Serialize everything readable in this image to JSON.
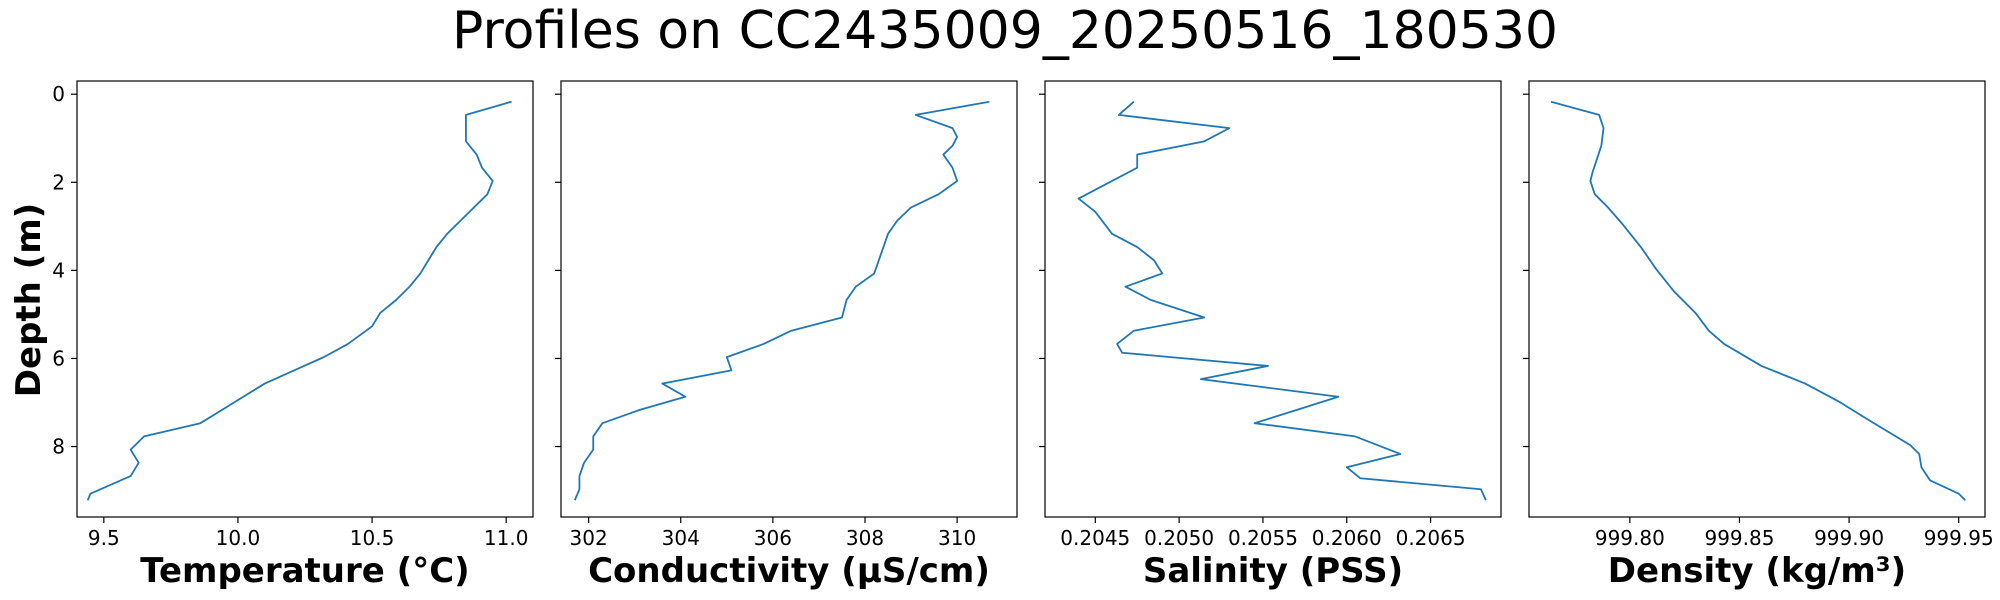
{
  "title": "Profiles on CC2435009_20250516_180530",
  "colors": {
    "series": "#1f77b4"
  },
  "depth_axis": {
    "label": "Depth (m)",
    "ylim": [
      9.6,
      -0.3
    ],
    "ticks": [
      0,
      2,
      4,
      6,
      8
    ]
  },
  "chart_data": [
    {
      "type": "line",
      "xlabel": "Temperature (°C)",
      "ylabel": "Depth (m)",
      "xlim": [
        9.4,
        11.1
      ],
      "ylim": [
        9.6,
        -0.3
      ],
      "x_ticks": [
        9.5,
        10.0,
        10.5,
        11.0
      ],
      "x_tick_labels": [
        "9.5",
        "10.0",
        "10.5",
        "11.0"
      ],
      "show_depth_labels": true,
      "points": [
        [
          11.02,
          0.17
        ],
        [
          10.85,
          0.47
        ],
        [
          10.85,
          1.07
        ],
        [
          10.89,
          1.37
        ],
        [
          10.91,
          1.67
        ],
        [
          10.95,
          1.97
        ],
        [
          10.93,
          2.27
        ],
        [
          10.88,
          2.57
        ],
        [
          10.83,
          2.87
        ],
        [
          10.78,
          3.17
        ],
        [
          10.74,
          3.47
        ],
        [
          10.71,
          3.77
        ],
        [
          10.68,
          4.07
        ],
        [
          10.64,
          4.37
        ],
        [
          10.59,
          4.67
        ],
        [
          10.53,
          4.97
        ],
        [
          10.5,
          5.27
        ],
        [
          10.41,
          5.67
        ],
        [
          10.32,
          5.97
        ],
        [
          10.21,
          6.27
        ],
        [
          10.1,
          6.57
        ],
        [
          10.02,
          6.87
        ],
        [
          9.94,
          7.17
        ],
        [
          9.86,
          7.47
        ],
        [
          9.65,
          7.77
        ],
        [
          9.6,
          8.07
        ],
        [
          9.63,
          8.37
        ],
        [
          9.6,
          8.67
        ],
        [
          9.45,
          9.07
        ],
        [
          9.44,
          9.22
        ]
      ]
    },
    {
      "type": "line",
      "xlabel": "Conductivity (µS/cm)",
      "ylabel": "Depth (m)",
      "xlim": [
        301.4,
        311.3
      ],
      "ylim": [
        9.6,
        -0.3
      ],
      "x_ticks": [
        302,
        304,
        306,
        308,
        310
      ],
      "x_tick_labels": [
        "302",
        "304",
        "306",
        "308",
        "310"
      ],
      "show_depth_labels": false,
      "points": [
        [
          310.7,
          0.17
        ],
        [
          309.1,
          0.47
        ],
        [
          309.9,
          0.77
        ],
        [
          310.0,
          0.97
        ],
        [
          309.9,
          1.17
        ],
        [
          309.7,
          1.37
        ],
        [
          309.9,
          1.67
        ],
        [
          310.0,
          1.97
        ],
        [
          309.6,
          2.27
        ],
        [
          309.0,
          2.57
        ],
        [
          308.7,
          2.87
        ],
        [
          308.5,
          3.17
        ],
        [
          308.4,
          3.47
        ],
        [
          308.3,
          3.77
        ],
        [
          308.2,
          4.07
        ],
        [
          307.8,
          4.37
        ],
        [
          307.6,
          4.67
        ],
        [
          307.5,
          5.07
        ],
        [
          306.4,
          5.37
        ],
        [
          305.8,
          5.67
        ],
        [
          305.0,
          5.97
        ],
        [
          305.1,
          6.27
        ],
        [
          303.6,
          6.57
        ],
        [
          304.1,
          6.87
        ],
        [
          303.1,
          7.17
        ],
        [
          302.3,
          7.47
        ],
        [
          302.1,
          7.77
        ],
        [
          302.1,
          8.07
        ],
        [
          301.9,
          8.37
        ],
        [
          301.8,
          8.67
        ],
        [
          301.8,
          8.97
        ],
        [
          301.7,
          9.22
        ]
      ]
    },
    {
      "type": "line",
      "xlabel": "Salinity (PSS)",
      "ylabel": "Depth (m)",
      "xlim": [
        0.2042,
        0.20692
      ],
      "ylim": [
        9.6,
        -0.3
      ],
      "x_ticks": [
        0.2045,
        0.205,
        0.2055,
        0.206,
        0.2065
      ],
      "x_tick_labels": [
        "0.2045",
        "0.2050",
        "0.2055",
        "0.2060",
        "0.2065"
      ],
      "show_depth_labels": false,
      "points": [
        [
          0.20473,
          0.17
        ],
        [
          0.20464,
          0.47
        ],
        [
          0.2053,
          0.77
        ],
        [
          0.20515,
          1.07
        ],
        [
          0.20475,
          1.37
        ],
        [
          0.20475,
          1.67
        ],
        [
          0.2046,
          1.97
        ],
        [
          0.20445,
          2.27
        ],
        [
          0.2044,
          2.37
        ],
        [
          0.2045,
          2.67
        ],
        [
          0.2046,
          3.17
        ],
        [
          0.20475,
          3.47
        ],
        [
          0.20485,
          3.77
        ],
        [
          0.2049,
          4.07
        ],
        [
          0.20468,
          4.37
        ],
        [
          0.20483,
          4.67
        ],
        [
          0.20515,
          5.07
        ],
        [
          0.20473,
          5.37
        ],
        [
          0.20463,
          5.67
        ],
        [
          0.20466,
          5.87
        ],
        [
          0.20553,
          6.17
        ],
        [
          0.20513,
          6.47
        ],
        [
          0.20595,
          6.87
        ],
        [
          0.2057,
          7.17
        ],
        [
          0.20545,
          7.47
        ],
        [
          0.20605,
          7.77
        ],
        [
          0.20632,
          8.17
        ],
        [
          0.206,
          8.47
        ],
        [
          0.20608,
          8.72
        ],
        [
          0.2068,
          8.97
        ],
        [
          0.20683,
          9.22
        ]
      ]
    },
    {
      "type": "line",
      "xlabel": "Density (kg/m³)",
      "ylabel": "Depth (m)",
      "xlim": [
        999.754,
        999.962
      ],
      "ylim": [
        9.6,
        -0.3
      ],
      "x_ticks": [
        999.8,
        999.85,
        999.9,
        999.95
      ],
      "x_tick_labels": [
        "999.80",
        "999.85",
        "999.90",
        "999.95"
      ],
      "show_depth_labels": false,
      "points": [
        [
          999.764,
          0.17
        ],
        [
          999.786,
          0.47
        ],
        [
          999.788,
          0.77
        ],
        [
          999.787,
          1.17
        ],
        [
          999.785,
          1.47
        ],
        [
          999.783,
          1.77
        ],
        [
          999.782,
          1.97
        ],
        [
          999.784,
          2.27
        ],
        [
          999.79,
          2.57
        ],
        [
          999.797,
          2.97
        ],
        [
          999.805,
          3.47
        ],
        [
          999.812,
          3.97
        ],
        [
          999.82,
          4.47
        ],
        [
          999.83,
          4.97
        ],
        [
          999.836,
          5.37
        ],
        [
          999.843,
          5.67
        ],
        [
          999.86,
          6.17
        ],
        [
          999.88,
          6.57
        ],
        [
          999.895,
          6.97
        ],
        [
          999.908,
          7.37
        ],
        [
          999.918,
          7.67
        ],
        [
          999.928,
          7.97
        ],
        [
          999.932,
          8.17
        ],
        [
          999.933,
          8.47
        ],
        [
          999.937,
          8.77
        ],
        [
          999.95,
          9.07
        ],
        [
          999.953,
          9.22
        ]
      ]
    }
  ]
}
